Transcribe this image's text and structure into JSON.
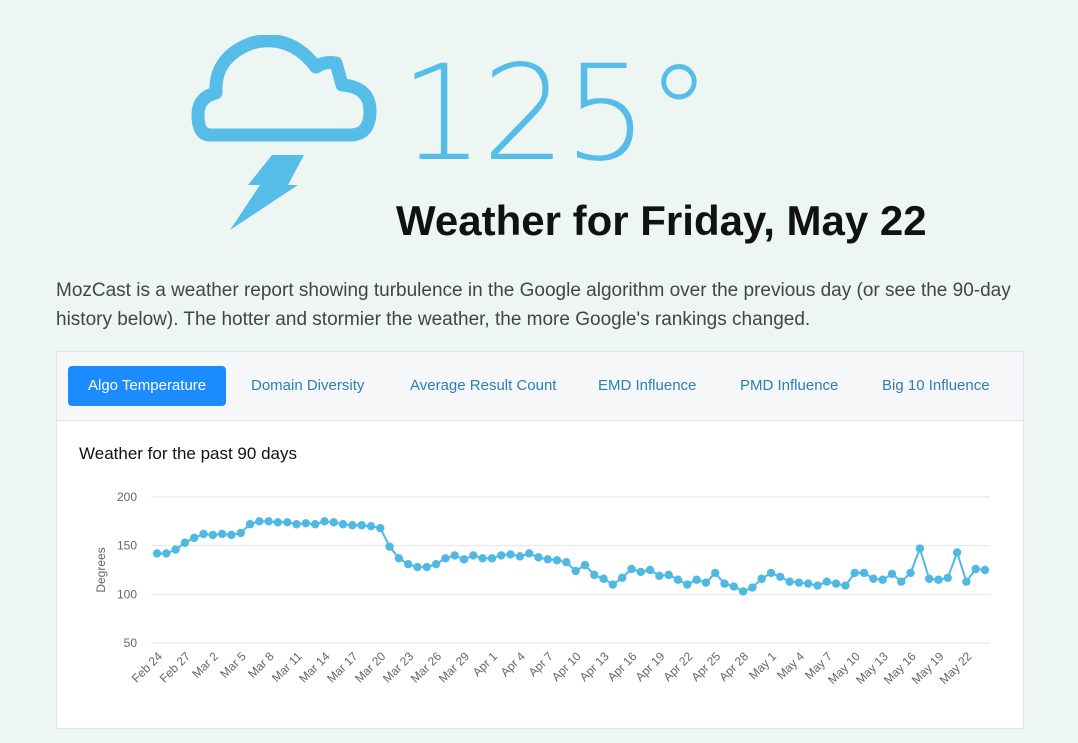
{
  "hero": {
    "icon": "cloud-lightning-icon",
    "temperature": "125°",
    "title": "Weather for Friday, May 22"
  },
  "intro": "MozCast is a weather report showing turbulence in the Google algorithm over the previous day (or see the 90-day history below). The hotter and stormier the weather, the more Google's rankings changed.",
  "tabs": [
    {
      "label": "Algo Temperature",
      "active": true
    },
    {
      "label": "Domain Diversity",
      "active": false
    },
    {
      "label": "Average Result Count",
      "active": false
    },
    {
      "label": "EMD Influence",
      "active": false
    },
    {
      "label": "PMD Influence",
      "active": false
    },
    {
      "label": "Big 10 Influence",
      "active": false
    }
  ],
  "colors": {
    "accent": "#56bde8",
    "tab_active": "#1a8cff",
    "tab_link": "#2a7fb8",
    "series": "#4fb8e3"
  },
  "chart_data": {
    "type": "line",
    "title": "Weather for the past 90 days",
    "ylabel": "Degrees",
    "xlabel": "",
    "ylim": [
      50,
      200
    ],
    "yticks": [
      50,
      100,
      150,
      200
    ],
    "grid": true,
    "x_tick_labels": [
      "Feb 24",
      "Feb 27",
      "Mar 2",
      "Mar 5",
      "Mar 8",
      "Mar 11",
      "Mar 14",
      "Mar 17",
      "Mar 20",
      "Mar 23",
      "Mar 26",
      "Mar 29",
      "Apr 1",
      "Apr 4",
      "Apr 7",
      "Apr 10",
      "Apr 13",
      "Apr 16",
      "Apr 19",
      "Apr 22",
      "Apr 25",
      "Apr 28",
      "May 1",
      "May 4",
      "May 7",
      "May 10",
      "May 13",
      "May 16",
      "May 19",
      "May 22"
    ],
    "series": [
      {
        "values": [
          142,
          142,
          146,
          153,
          158,
          162,
          161,
          162,
          161,
          163,
          172,
          175,
          175,
          174,
          174,
          172,
          173,
          172,
          175,
          174,
          172,
          171,
          171,
          170,
          168,
          149,
          137,
          131,
          128,
          128,
          131,
          137,
          140,
          136,
          140,
          137,
          137,
          140,
          141,
          139,
          142,
          138,
          136,
          135,
          133,
          124,
          130,
          120,
          116,
          110,
          117,
          126,
          123,
          125,
          119,
          120,
          115,
          110,
          115,
          112,
          122,
          111,
          108,
          103,
          107,
          116,
          122,
          118,
          113,
          112,
          111,
          109,
          113,
          111,
          109,
          122,
          122,
          116,
          115,
          121,
          113,
          122,
          147,
          116,
          115,
          117,
          143,
          113,
          126,
          125
        ]
      }
    ]
  }
}
